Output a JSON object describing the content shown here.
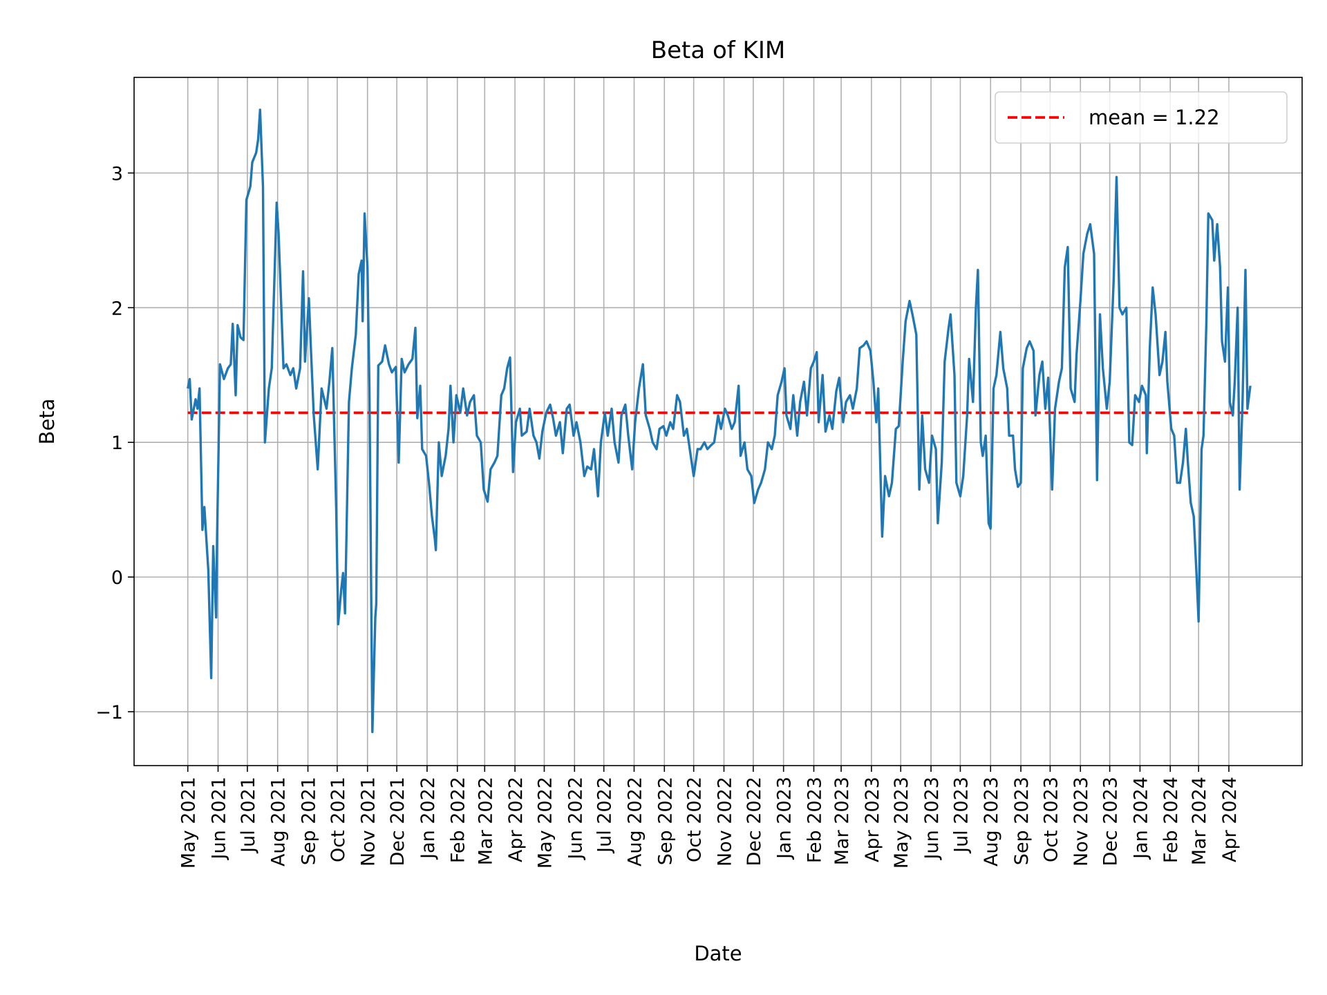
{
  "chart_data": {
    "type": "line",
    "title": "Beta of KIM",
    "xlabel": "Date",
    "ylabel": "Beta",
    "xlim": [
      "2021-03-07",
      "2024-06-15"
    ],
    "ylim": [
      -1.4,
      3.71
    ],
    "grid": true,
    "legend_placement": "upper right",
    "yticks": [
      -1,
      0,
      1,
      2,
      3
    ],
    "ytick_labels": [
      "−1",
      "0",
      "1",
      "2",
      "3"
    ],
    "xticks": [
      "2021-05-01",
      "2021-06-01",
      "2021-07-01",
      "2021-08-01",
      "2021-09-01",
      "2021-10-01",
      "2021-11-01",
      "2021-12-01",
      "2022-01-01",
      "2022-02-01",
      "2022-03-01",
      "2022-04-01",
      "2022-05-01",
      "2022-06-01",
      "2022-07-01",
      "2022-08-01",
      "2022-09-01",
      "2022-10-01",
      "2022-11-01",
      "2022-12-01",
      "2023-01-01",
      "2023-02-01",
      "2023-03-01",
      "2023-04-01",
      "2023-05-01",
      "2023-06-01",
      "2023-07-01",
      "2023-08-01",
      "2023-09-01",
      "2023-10-01",
      "2023-11-01",
      "2023-12-01",
      "2024-01-01",
      "2024-02-01",
      "2024-03-01",
      "2024-04-01"
    ],
    "xtick_labels": [
      "May 2021",
      "Jun 2021",
      "Jul 2021",
      "Aug 2021",
      "Sep 2021",
      "Oct 2021",
      "Nov 2021",
      "Dec 2021",
      "Jan 2022",
      "Feb 2022",
      "Mar 2022",
      "Apr 2022",
      "May 2022",
      "Jun 2022",
      "Jul 2022",
      "Aug 2022",
      "Sep 2022",
      "Oct 2022",
      "Nov 2022",
      "Dec 2022",
      "Jan 2023",
      "Feb 2023",
      "Mar 2023",
      "Apr 2023",
      "May 2023",
      "Jun 2023",
      "Jul 2023",
      "Aug 2023",
      "Sep 2023",
      "Oct 2023",
      "Nov 2023",
      "Dec 2023",
      "Jan 2024",
      "Feb 2024",
      "Mar 2024",
      "Apr 2024"
    ],
    "colors": {
      "series": "#1f77b4",
      "mean": "#ff0000",
      "grid": "#b0b0b0"
    },
    "mean": {
      "value": 1.22,
      "label": "mean = 1.22",
      "style": "dashed"
    },
    "series": [
      {
        "x": [
          "2021-05-01",
          "2021-05-03",
          "2021-05-05",
          "2021-05-09",
          "2021-05-11",
          "2021-05-13",
          "2021-05-16",
          "2021-05-18",
          "2021-05-22",
          "2021-05-25",
          "2021-05-27",
          "2021-05-30",
          "2021-05-31",
          "2021-06-03",
          "2021-06-07",
          "2021-06-11",
          "2021-06-14",
          "2021-06-16",
          "2021-06-19",
          "2021-06-21",
          "2021-06-24",
          "2021-06-27",
          "2021-06-30",
          "2021-07-04",
          "2021-07-06",
          "2021-07-10",
          "2021-07-12",
          "2021-07-14",
          "2021-07-17",
          "2021-07-19",
          "2021-07-23",
          "2021-07-26",
          "2021-07-31",
          "2021-08-02",
          "2021-08-07",
          "2021-08-10",
          "2021-08-14",
          "2021-08-17",
          "2021-08-20",
          "2021-08-24",
          "2021-08-27",
          "2021-08-29",
          "2021-09-02",
          "2021-09-04",
          "2021-09-07",
          "2021-09-11",
          "2021-09-15",
          "2021-09-20",
          "2021-09-23",
          "2021-09-26",
          "2021-09-30",
          "2021-10-02",
          "2021-10-05",
          "2021-10-07",
          "2021-10-09",
          "2021-10-13",
          "2021-10-16",
          "2021-10-20",
          "2021-10-23",
          "2021-10-26",
          "2021-10-27",
          "2021-10-29",
          "2021-11-01",
          "2021-11-03",
          "2021-11-06",
          "2021-11-09",
          "2021-11-10",
          "2021-11-12",
          "2021-11-16",
          "2021-11-19",
          "2021-11-23",
          "2021-11-26",
          "2021-11-30",
          "2021-12-03",
          "2021-12-06",
          "2021-12-09",
          "2021-12-13",
          "2021-12-17",
          "2021-12-20",
          "2021-12-22",
          "2021-12-25",
          "2021-12-27",
          "2021-12-31",
          "2022-01-03",
          "2022-01-06",
          "2022-01-09",
          "2022-01-10",
          "2022-01-13",
          "2022-01-16",
          "2022-01-20",
          "2022-01-23",
          "2022-01-25",
          "2022-01-28",
          "2022-01-31",
          "2022-02-04",
          "2022-02-07",
          "2022-02-11",
          "2022-02-14",
          "2022-02-18",
          "2022-02-21",
          "2022-02-25",
          "2022-02-28",
          "2022-03-04",
          "2022-03-07",
          "2022-03-11",
          "2022-03-14",
          "2022-03-18",
          "2022-03-21",
          "2022-03-24",
          "2022-03-27",
          "2022-03-30",
          "2022-04-02",
          "2022-04-06",
          "2022-04-08",
          "2022-04-13",
          "2022-04-16",
          "2022-04-20",
          "2022-04-23",
          "2022-04-26",
          "2022-04-29",
          "2022-05-03",
          "2022-05-07",
          "2022-05-10",
          "2022-05-13",
          "2022-05-17",
          "2022-05-20",
          "2022-05-24",
          "2022-05-27",
          "2022-05-31",
          "2022-06-03",
          "2022-06-07",
          "2022-06-11",
          "2022-06-14",
          "2022-06-18",
          "2022-06-21",
          "2022-06-25",
          "2022-06-28",
          "2022-07-02",
          "2022-07-05",
          "2022-07-09",
          "2022-07-12",
          "2022-07-16",
          "2022-07-19",
          "2022-07-23",
          "2022-07-26",
          "2022-07-30",
          "2022-08-02",
          "2022-08-06",
          "2022-08-10",
          "2022-08-13",
          "2022-08-17",
          "2022-08-20",
          "2022-08-24",
          "2022-08-27",
          "2022-08-31",
          "2022-09-03",
          "2022-09-07",
          "2022-09-10",
          "2022-09-14",
          "2022-09-17",
          "2022-09-21",
          "2022-09-24",
          "2022-09-28",
          "2022-10-01",
          "2022-10-05",
          "2022-10-08",
          "2022-10-12",
          "2022-10-15",
          "2022-10-19",
          "2022-10-22",
          "2022-10-26",
          "2022-10-29",
          "2022-11-02",
          "2022-11-05",
          "2022-11-09",
          "2022-11-12",
          "2022-11-16",
          "2022-11-18",
          "2022-11-22",
          "2022-11-25",
          "2022-11-29",
          "2022-12-02",
          "2022-12-06",
          "2022-12-09",
          "2022-12-13",
          "2022-12-16",
          "2022-12-20",
          "2022-12-23",
          "2022-12-26",
          "2022-12-30",
          "2023-01-02",
          "2023-01-04",
          "2023-01-08",
          "2023-01-11",
          "2023-01-15",
          "2023-01-18",
          "2023-01-22",
          "2023-01-25",
          "2023-01-29",
          "2023-02-01",
          "2023-02-04",
          "2023-02-06",
          "2023-02-10",
          "2023-02-13",
          "2023-02-17",
          "2023-02-20",
          "2023-02-24",
          "2023-02-27",
          "2023-03-03",
          "2023-03-06",
          "2023-03-10",
          "2023-03-13",
          "2023-03-17",
          "2023-03-20",
          "2023-03-24",
          "2023-03-27",
          "2023-03-31",
          "2023-04-03",
          "2023-04-06",
          "2023-04-08",
          "2023-04-12",
          "2023-04-15",
          "2023-04-19",
          "2023-04-22",
          "2023-04-26",
          "2023-04-29",
          "2023-05-03",
          "2023-05-06",
          "2023-05-10",
          "2023-05-13",
          "2023-05-17",
          "2023-05-20",
          "2023-05-23",
          "2023-05-26",
          "2023-05-30",
          "2023-06-02",
          "2023-06-06",
          "2023-06-08",
          "2023-06-12",
          "2023-06-15",
          "2023-06-19",
          "2023-06-21",
          "2023-06-25",
          "2023-06-27",
          "2023-07-01",
          "2023-07-04",
          "2023-07-08",
          "2023-07-10",
          "2023-07-14",
          "2023-07-17",
          "2023-07-19",
          "2023-07-22",
          "2023-07-24",
          "2023-07-27",
          "2023-07-30",
          "2023-08-01",
          "2023-08-04",
          "2023-08-07",
          "2023-08-11",
          "2023-08-14",
          "2023-08-18",
          "2023-08-20",
          "2023-08-24",
          "2023-08-26",
          "2023-08-29",
          "2023-09-01",
          "2023-09-03",
          "2023-09-07",
          "2023-09-10",
          "2023-09-14",
          "2023-09-16",
          "2023-09-20",
          "2023-09-23",
          "2023-09-26",
          "2023-09-29",
          "2023-10-03",
          "2023-10-06",
          "2023-10-10",
          "2023-10-13",
          "2023-10-16",
          "2023-10-19",
          "2023-10-22",
          "2023-10-26",
          "2023-10-28",
          "2023-11-01",
          "2023-11-04",
          "2023-11-08",
          "2023-11-11",
          "2023-11-15",
          "2023-11-18",
          "2023-11-21",
          "2023-11-24",
          "2023-11-28",
          "2023-12-01",
          "2023-12-05",
          "2023-12-08",
          "2023-12-11",
          "2023-12-14",
          "2023-12-18",
          "2023-12-21",
          "2023-12-24",
          "2023-12-27",
          "2023-12-31",
          "2024-01-03",
          "2024-01-07",
          "2024-01-08",
          "2024-01-11",
          "2024-01-14",
          "2024-01-17",
          "2024-01-21",
          "2024-01-24",
          "2024-01-27",
          "2024-01-29",
          "2024-02-02",
          "2024-02-05",
          "2024-02-08",
          "2024-02-11",
          "2024-02-14",
          "2024-02-17",
          "2024-02-19",
          "2024-02-22",
          "2024-02-25",
          "2024-02-28",
          "2024-03-01",
          "2024-03-04",
          "2024-03-06",
          "2024-03-09",
          "2024-03-11",
          "2024-03-15",
          "2024-03-17",
          "2024-03-20",
          "2024-03-23",
          "2024-03-25",
          "2024-03-28",
          "2024-03-31",
          "2024-04-02",
          "2024-04-05",
          "2024-04-07",
          "2024-04-10",
          "2024-04-12",
          "2024-04-15",
          "2024-04-18",
          "2024-04-20",
          "2024-04-23"
        ],
        "y": [
          1.4,
          1.47,
          1.17,
          1.32,
          1.25,
          1.4,
          0.35,
          0.52,
          0.05,
          -0.75,
          0.23,
          -0.3,
          0.3,
          1.58,
          1.47,
          1.55,
          1.58,
          1.88,
          1.35,
          1.87,
          1.78,
          1.76,
          2.8,
          2.9,
          3.08,
          3.15,
          3.25,
          3.47,
          2.9,
          1.0,
          1.4,
          1.55,
          2.78,
          2.55,
          1.55,
          1.58,
          1.5,
          1.55,
          1.4,
          1.55,
          2.27,
          1.6,
          2.07,
          1.7,
          1.2,
          0.8,
          1.4,
          1.25,
          1.45,
          1.7,
          0.5,
          -0.35,
          -0.1,
          0.03,
          -0.27,
          1.3,
          1.55,
          1.8,
          2.25,
          2.35,
          1.9,
          2.7,
          2.3,
          1.4,
          -1.15,
          -0.3,
          -0.2,
          1.57,
          1.6,
          1.72,
          1.58,
          1.52,
          1.56,
          0.85,
          1.62,
          1.52,
          1.58,
          1.62,
          1.85,
          1.18,
          1.42,
          0.95,
          0.9,
          0.7,
          0.45,
          0.28,
          0.2,
          1.0,
          0.75,
          0.9,
          1.1,
          1.42,
          1.0,
          1.35,
          1.22,
          1.4,
          1.2,
          1.3,
          1.35,
          1.05,
          1.0,
          0.65,
          0.56,
          0.8,
          0.85,
          0.9,
          1.35,
          1.4,
          1.55,
          1.63,
          0.78,
          1.15,
          1.25,
          1.05,
          1.08,
          1.25,
          1.05,
          1.0,
          0.88,
          1.08,
          1.22,
          1.28,
          1.18,
          1.05,
          1.15,
          0.92,
          1.25,
          1.28,
          1.05,
          1.15,
          1.0,
          0.75,
          0.82,
          0.8,
          0.95,
          0.6,
          1.0,
          1.22,
          1.05,
          1.25,
          1.0,
          0.85,
          1.2,
          1.28,
          1.05,
          0.8,
          1.15,
          1.4,
          1.58,
          1.2,
          1.1,
          1.0,
          0.95,
          1.1,
          1.12,
          1.05,
          1.15,
          1.1,
          1.35,
          1.3,
          1.05,
          1.1,
          0.9,
          0.75,
          0.95,
          0.95,
          1.0,
          0.95,
          0.98,
          1.0,
          1.2,
          1.1,
          1.25,
          1.2,
          1.1,
          1.15,
          1.42,
          0.9,
          1.0,
          0.8,
          0.75,
          0.55,
          0.65,
          0.7,
          0.8,
          1.0,
          0.95,
          1.05,
          1.35,
          1.45,
          1.55,
          1.2,
          1.1,
          1.35,
          1.05,
          1.3,
          1.45,
          1.2,
          1.55,
          1.6,
          1.67,
          1.15,
          1.5,
          1.08,
          1.2,
          1.1,
          1.38,
          1.48,
          1.15,
          1.3,
          1.35,
          1.25,
          1.4,
          1.7,
          1.72,
          1.75,
          1.68,
          1.45,
          1.15,
          1.4,
          0.3,
          0.75,
          0.6,
          0.7,
          1.1,
          1.12,
          1.6,
          1.9,
          2.05,
          1.95,
          1.8,
          0.65,
          1.2,
          0.8,
          0.7,
          1.05,
          0.95,
          0.4,
          0.85,
          1.6,
          1.85,
          1.95,
          1.5,
          0.7,
          0.6,
          0.75,
          1.2,
          1.62,
          1.3,
          2.0,
          2.28,
          1.0,
          0.9,
          1.05,
          0.4,
          0.36,
          1.4,
          1.5,
          1.82,
          1.55,
          1.4,
          1.05,
          1.05,
          0.8,
          0.67,
          0.7,
          1.55,
          1.7,
          1.75,
          1.68,
          1.2,
          1.5,
          1.6,
          1.25,
          1.48,
          0.65,
          1.25,
          1.45,
          1.55,
          2.3,
          2.45,
          1.4,
          1.3,
          1.65,
          2.05,
          2.4,
          2.55,
          2.62,
          2.4,
          0.72,
          1.95,
          1.55,
          1.25,
          1.45,
          2.2,
          2.97,
          2.0,
          1.95,
          2.0,
          1.0,
          0.98,
          1.35,
          1.3,
          1.42,
          1.35,
          0.92,
          1.7,
          2.15,
          1.95,
          1.5,
          1.6,
          1.82,
          1.45,
          1.1,
          1.05,
          0.7,
          0.7,
          0.85,
          1.1,
          0.85,
          0.55,
          0.45,
          0.0,
          -0.33,
          0.95,
          1.05,
          1.9,
          2.7,
          2.65,
          2.35,
          2.62,
          2.3,
          1.75,
          1.6,
          2.15,
          1.3,
          1.2,
          1.45,
          2.0,
          0.65,
          1.3,
          2.28,
          1.25,
          1.42
        ]
      }
    ]
  }
}
